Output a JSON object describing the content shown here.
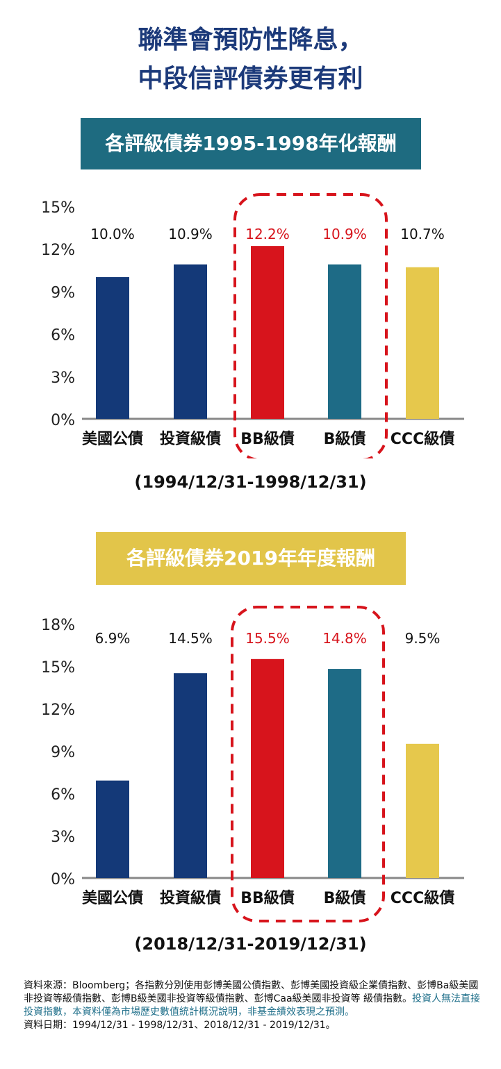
{
  "title": {
    "line1": "聯準會預防性降息，",
    "line2": "中段信評債券更有利"
  },
  "colors": {
    "navy": "#143978",
    "red": "#d7141c",
    "teal": "#1e6b86",
    "yellow": "#e6c84c",
    "banner_teal": "#1e6b80",
    "banner_yellow": "#e2c54a",
    "highlight_red": "#d7141c"
  },
  "chart_data": [
    {
      "type": "bar",
      "title": "各評級債券1995-1998年化報酬",
      "categories": [
        "美國公債",
        "投資級債",
        "BB級債",
        "B級債",
        "CCC級債"
      ],
      "values": [
        10.0,
        10.9,
        12.2,
        10.9,
        10.7
      ],
      "value_labels": [
        "10.0%",
        "10.9%",
        "12.2%",
        "10.9%",
        "10.7%"
      ],
      "bar_colors": [
        "#143978",
        "#143978",
        "#d7141c",
        "#1e6b86",
        "#e6c84c"
      ],
      "label_colors": [
        "#111111",
        "#111111",
        "#d7141c",
        "#d7141c",
        "#111111"
      ],
      "highlighted": [
        "BB級債",
        "B級債"
      ],
      "ylim": [
        0,
        15
      ],
      "yticks": [
        0,
        3,
        6,
        9,
        12,
        15
      ],
      "ytick_labels": [
        "0%",
        "3%",
        "6%",
        "9%",
        "12%",
        "15%"
      ],
      "grid": false,
      "period": "(1994/12/31-1998/12/31)"
    },
    {
      "type": "bar",
      "title": "各評級債券2019年年度報酬",
      "categories": [
        "美國公債",
        "投資級債",
        "BB級債",
        "B級債",
        "CCC級債"
      ],
      "values": [
        6.9,
        14.5,
        15.5,
        14.8,
        9.5
      ],
      "value_labels": [
        "6.9%",
        "14.5%",
        "15.5%",
        "14.8%",
        "9.5%"
      ],
      "bar_colors": [
        "#143978",
        "#143978",
        "#d7141c",
        "#1e6b86",
        "#e6c84c"
      ],
      "label_colors": [
        "#111111",
        "#111111",
        "#d7141c",
        "#d7141c",
        "#111111"
      ],
      "highlighted": [
        "BB級債",
        "B級債"
      ],
      "ylim": [
        0,
        18
      ],
      "yticks": [
        0,
        3,
        6,
        9,
        12,
        15,
        18
      ],
      "ytick_labels": [
        "0%",
        "3%",
        "6%",
        "9%",
        "12%",
        "15%",
        "18%"
      ],
      "grid": false,
      "period": "(2018/12/31-2019/12/31)"
    }
  ],
  "footnote": {
    "source": "資料來源：Bloomberg；各指數分別使用彭博美國公債指數、彭博美國投資級企業債指數、彭博Ba級美國非投資等級債指數、彭博B級美國非投資等級債指數、彭博Caa級美國非投資等 級債指數。",
    "disclaimer": "投資人無法直接投資指數，本資料僅為市場歷史數值統計概況說明，非基金績效表現之預測。",
    "date": "資料日期：1994/12/31 - 1998/12/31、2018/12/31 - 2019/12/31。"
  }
}
